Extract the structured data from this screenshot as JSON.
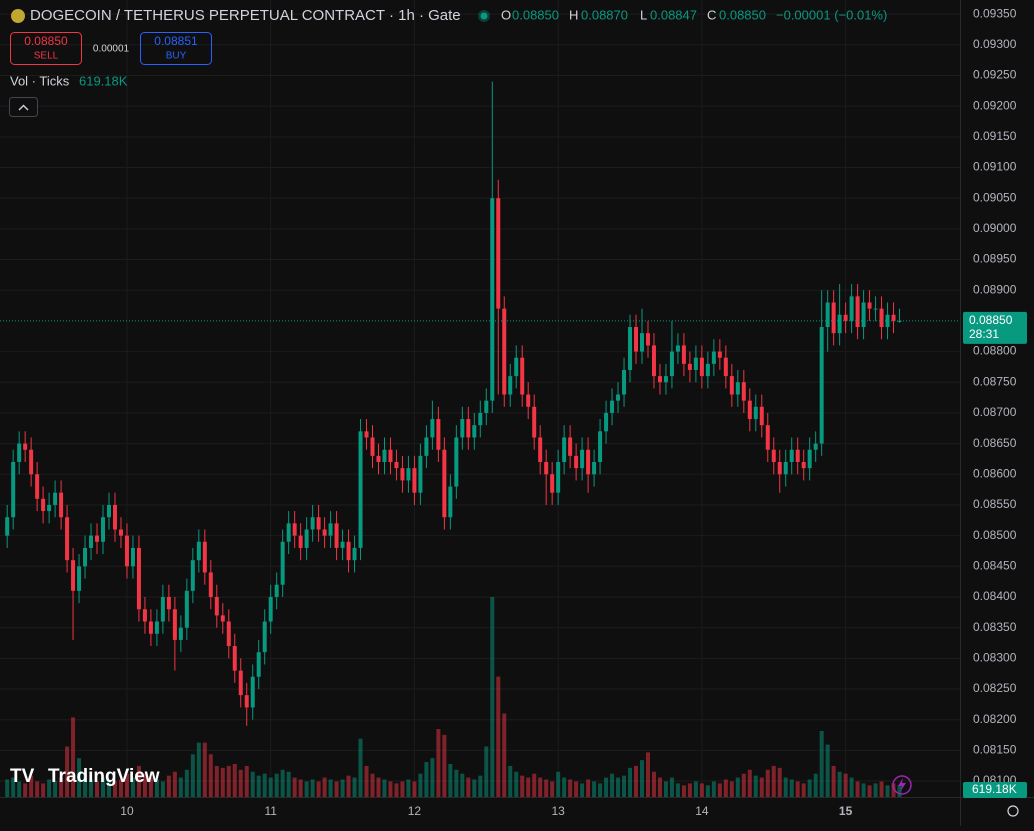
{
  "chart_data": {
    "type": "candlestick",
    "title": "DOGECOIN / TETHERUS PERPETUAL CONTRACT · 1h · Gate",
    "legend": {
      "o_label": "O",
      "o": "0.08850",
      "h_label": "H",
      "h": "0.08870",
      "l_label": "L",
      "l": "0.08847",
      "c_label": "C",
      "c": "0.08850",
      "change": "−0.00001 (−0.01%)"
    },
    "trade": {
      "sell_price": "0.08850",
      "sell": "SELL",
      "spread": "0.00001",
      "buy_price": "0.08851",
      "buy": "BUY"
    },
    "volume_title": "Vol · Ticks",
    "volume_last_label": "619.18K",
    "price_tag": "0.08850",
    "countdown": "28:31",
    "branding": "TradingView",
    "up_color": "#089981",
    "down_color": "#f23645",
    "grid": true,
    "xlim": [
      -1.2,
      159.1
    ],
    "ylim": [
      0.08074,
      0.09373
    ],
    "xticks": [
      {
        "value": 20,
        "label": "10"
      },
      {
        "value": 44,
        "label": "11"
      },
      {
        "value": 68,
        "label": "12"
      },
      {
        "value": 92,
        "label": "13"
      },
      {
        "value": 116,
        "label": "14"
      },
      {
        "value": 140,
        "label": "15"
      }
    ],
    "yticks": [
      {
        "value": 0.0935,
        "label": "0.09350"
      },
      {
        "value": 0.093,
        "label": "0.09300"
      },
      {
        "value": 0.0925,
        "label": "0.09250"
      },
      {
        "value": 0.092,
        "label": "0.09200"
      },
      {
        "value": 0.0915,
        "label": "0.09150"
      },
      {
        "value": 0.091,
        "label": "0.09100"
      },
      {
        "value": 0.0905,
        "label": "0.09050"
      },
      {
        "value": 0.09,
        "label": "0.09000"
      },
      {
        "value": 0.0895,
        "label": "0.08950"
      },
      {
        "value": 0.089,
        "label": "0.08900"
      },
      {
        "value": 0.088,
        "label": "0.08800"
      },
      {
        "value": 0.0875,
        "label": "0.08750"
      },
      {
        "value": 0.087,
        "label": "0.08700"
      },
      {
        "value": 0.0865,
        "label": "0.08650"
      },
      {
        "value": 0.086,
        "label": "0.08600"
      },
      {
        "value": 0.0855,
        "label": "0.08550"
      },
      {
        "value": 0.085,
        "label": "0.08500"
      },
      {
        "value": 0.0845,
        "label": "0.08450"
      },
      {
        "value": 0.084,
        "label": "0.08400"
      },
      {
        "value": 0.0835,
        "label": "0.08350"
      },
      {
        "value": 0.083,
        "label": "0.08300"
      },
      {
        "value": 0.0825,
        "label": "0.08250"
      },
      {
        "value": 0.082,
        "label": "0.08200"
      },
      {
        "value": 0.0815,
        "label": "0.08150"
      },
      {
        "value": 0.081,
        "label": "0.08100"
      }
    ],
    "last_price": 0.0885,
    "open": [
      0.085,
      0.0853,
      0.0862,
      0.0865,
      0.0864,
      0.086,
      0.0856,
      0.0854,
      0.0855,
      0.0857,
      0.0853,
      0.0846,
      0.0841,
      0.0845,
      0.0848,
      0.085,
      0.0849,
      0.0853,
      0.0855,
      0.0851,
      0.085,
      0.0845,
      0.0848,
      0.0838,
      0.0836,
      0.0834,
      0.0836,
      0.084,
      0.0838,
      0.0833,
      0.0835,
      0.0841,
      0.0846,
      0.0849,
      0.0844,
      0.084,
      0.0837,
      0.0836,
      0.0832,
      0.0828,
      0.0824,
      0.0822,
      0.0827,
      0.0831,
      0.0836,
      0.084,
      0.0842,
      0.0849,
      0.0852,
      0.085,
      0.0848,
      0.0851,
      0.0853,
      0.0851,
      0.085,
      0.0852,
      0.0848,
      0.0849,
      0.0846,
      0.0848,
      0.0867,
      0.0866,
      0.0863,
      0.0862,
      0.0864,
      0.0862,
      0.0861,
      0.0859,
      0.0861,
      0.0857,
      0.0863,
      0.0866,
      0.0869,
      0.0864,
      0.0853,
      0.0858,
      0.0866,
      0.0869,
      0.0866,
      0.0868,
      0.087,
      0.0872,
      0.0905,
      0.0887,
      0.0873,
      0.0876,
      0.0879,
      0.0873,
      0.0871,
      0.0866,
      0.0862,
      0.086,
      0.0857,
      0.0862,
      0.0866,
      0.0863,
      0.0861,
      0.0864,
      0.086,
      0.0862,
      0.0867,
      0.087,
      0.0872,
      0.0873,
      0.0877,
      0.0884,
      0.088,
      0.0883,
      0.0881,
      0.0876,
      0.0875,
      0.0876,
      0.088,
      0.0881,
      0.0878,
      0.0877,
      0.0879,
      0.0876,
      0.0878,
      0.088,
      0.0879,
      0.0876,
      0.0873,
      0.0875,
      0.0872,
      0.0869,
      0.0871,
      0.0868,
      0.0864,
      0.0862,
      0.086,
      0.0862,
      0.0864,
      0.0862,
      0.0861,
      0.0864,
      0.0865,
      0.0884,
      0.0888,
      0.0883,
      0.0886,
      0.0885,
      0.0889,
      0.0884,
      0.0888,
      0.0887,
      0.0887,
      0.0884,
      0.0886,
      0.0885
    ],
    "high": [
      0.0855,
      0.0864,
      0.0867,
      0.0867,
      0.0866,
      0.0862,
      0.0858,
      0.0857,
      0.0859,
      0.0859,
      0.0855,
      0.0848,
      0.0847,
      0.085,
      0.0852,
      0.0852,
      0.0855,
      0.0857,
      0.0857,
      0.0853,
      0.0852,
      0.085,
      0.085,
      0.084,
      0.0838,
      0.0838,
      0.0842,
      0.0842,
      0.084,
      0.0837,
      0.0843,
      0.0848,
      0.0851,
      0.0851,
      0.0846,
      0.0842,
      0.0839,
      0.0838,
      0.0834,
      0.083,
      0.0826,
      0.0829,
      0.0833,
      0.0838,
      0.0842,
      0.0844,
      0.0851,
      0.0854,
      0.0854,
      0.0852,
      0.0853,
      0.0855,
      0.0855,
      0.0853,
      0.0854,
      0.0854,
      0.0851,
      0.0851,
      0.085,
      0.0869,
      0.0869,
      0.0868,
      0.0865,
      0.0866,
      0.0866,
      0.0864,
      0.0863,
      0.0863,
      0.0863,
      0.0865,
      0.0868,
      0.0872,
      0.0871,
      0.0866,
      0.086,
      0.0868,
      0.0871,
      0.0871,
      0.087,
      0.0872,
      0.0874,
      0.0924,
      0.0908,
      0.0889,
      0.0878,
      0.0881,
      0.0881,
      0.0875,
      0.0873,
      0.0868,
      0.0864,
      0.0862,
      0.0864,
      0.0868,
      0.0868,
      0.0865,
      0.0866,
      0.0866,
      0.0864,
      0.0869,
      0.0872,
      0.0874,
      0.0875,
      0.0879,
      0.0886,
      0.0886,
      0.0887,
      0.0885,
      0.0883,
      0.0878,
      0.0878,
      0.0885,
      0.0883,
      0.0883,
      0.088,
      0.0881,
      0.0881,
      0.088,
      0.0882,
      0.0882,
      0.0881,
      0.0878,
      0.0877,
      0.0877,
      0.0874,
      0.0873,
      0.0873,
      0.087,
      0.0866,
      0.0864,
      0.0864,
      0.0866,
      0.0866,
      0.0864,
      0.0866,
      0.0867,
      0.089,
      0.089,
      0.089,
      0.0891,
      0.0888,
      0.0891,
      0.0891,
      0.089,
      0.089,
      0.0889,
      0.0889,
      0.0888,
      0.0888,
      0.0887
    ],
    "low": [
      0.0848,
      0.0851,
      0.086,
      0.0862,
      0.0858,
      0.0854,
      0.0852,
      0.0852,
      0.0853,
      0.0851,
      0.0844,
      0.0833,
      0.0839,
      0.0843,
      0.0846,
      0.0847,
      0.0847,
      0.0851,
      0.0849,
      0.0848,
      0.0843,
      0.0843,
      0.0836,
      0.0834,
      0.0832,
      0.0832,
      0.0834,
      0.0836,
      0.0828,
      0.0831,
      0.0833,
      0.0839,
      0.0844,
      0.0842,
      0.0838,
      0.0835,
      0.0834,
      0.083,
      0.0826,
      0.0822,
      0.0819,
      0.082,
      0.0825,
      0.0829,
      0.0834,
      0.0838,
      0.084,
      0.0847,
      0.0848,
      0.0846,
      0.0846,
      0.0849,
      0.0849,
      0.0848,
      0.0848,
      0.0846,
      0.0846,
      0.0844,
      0.0844,
      0.0846,
      0.0864,
      0.0861,
      0.086,
      0.086,
      0.086,
      0.0859,
      0.0857,
      0.0857,
      0.0855,
      0.0855,
      0.0861,
      0.0864,
      0.0862,
      0.0851,
      0.0851,
      0.0856,
      0.0864,
      0.0864,
      0.0864,
      0.0866,
      0.0868,
      0.087,
      0.0873,
      0.0871,
      0.0871,
      0.0874,
      0.0871,
      0.0869,
      0.0864,
      0.086,
      0.0855,
      0.0855,
      0.0855,
      0.086,
      0.0861,
      0.0859,
      0.0859,
      0.0857,
      0.0858,
      0.086,
      0.0865,
      0.0868,
      0.087,
      0.0871,
      0.0875,
      0.0878,
      0.0878,
      0.0879,
      0.0874,
      0.0873,
      0.0873,
      0.0874,
      0.0878,
      0.0876,
      0.0875,
      0.0875,
      0.0874,
      0.0874,
      0.0876,
      0.0877,
      0.0874,
      0.0871,
      0.0871,
      0.087,
      0.0867,
      0.0867,
      0.0866,
      0.0862,
      0.086,
      0.0857,
      0.0858,
      0.086,
      0.086,
      0.0859,
      0.0859,
      0.0862,
      0.0863,
      0.088,
      0.0881,
      0.0881,
      0.0883,
      0.0883,
      0.0882,
      0.0882,
      0.0885,
      0.0885,
      0.0882,
      0.0882,
      0.0883,
      0.08847
    ],
    "close": [
      0.0853,
      0.0862,
      0.0865,
      0.0864,
      0.086,
      0.0856,
      0.0854,
      0.0855,
      0.0857,
      0.0853,
      0.0846,
      0.0841,
      0.0845,
      0.0848,
      0.085,
      0.0849,
      0.0853,
      0.0855,
      0.0851,
      0.085,
      0.0845,
      0.0848,
      0.0838,
      0.0836,
      0.0834,
      0.0836,
      0.084,
      0.0838,
      0.0833,
      0.0835,
      0.0841,
      0.0846,
      0.0849,
      0.0844,
      0.084,
      0.0837,
      0.0836,
      0.0832,
      0.0828,
      0.0824,
      0.0822,
      0.0827,
      0.0831,
      0.0836,
      0.084,
      0.0842,
      0.0849,
      0.0852,
      0.085,
      0.0848,
      0.0851,
      0.0853,
      0.0851,
      0.085,
      0.0852,
      0.0848,
      0.0849,
      0.0846,
      0.0848,
      0.0867,
      0.0866,
      0.0863,
      0.0862,
      0.0864,
      0.0862,
      0.0861,
      0.0859,
      0.0861,
      0.0857,
      0.0863,
      0.0866,
      0.0869,
      0.0864,
      0.0853,
      0.0858,
      0.0866,
      0.0869,
      0.0866,
      0.0868,
      0.087,
      0.0872,
      0.0905,
      0.0887,
      0.0873,
      0.0876,
      0.0879,
      0.0873,
      0.0871,
      0.0866,
      0.0862,
      0.086,
      0.0857,
      0.0862,
      0.0866,
      0.0863,
      0.0861,
      0.0864,
      0.086,
      0.0862,
      0.0867,
      0.087,
      0.0872,
      0.0873,
      0.0877,
      0.0884,
      0.088,
      0.0883,
      0.0881,
      0.0876,
      0.0875,
      0.0876,
      0.088,
      0.0881,
      0.0878,
      0.0877,
      0.0879,
      0.0876,
      0.0878,
      0.088,
      0.0879,
      0.0876,
      0.0873,
      0.0875,
      0.0872,
      0.0869,
      0.0871,
      0.0868,
      0.0864,
      0.0862,
      0.086,
      0.0862,
      0.0864,
      0.0862,
      0.0861,
      0.0864,
      0.0865,
      0.0884,
      0.0888,
      0.0883,
      0.0886,
      0.0885,
      0.0889,
      0.0884,
      0.0888,
      0.0887,
      0.0887,
      0.0884,
      0.0886,
      0.0885,
      0.0885
    ],
    "volume": [
      900000,
      1000000,
      800000,
      700000,
      1100000,
      800000,
      700000,
      900000,
      800000,
      1000000,
      2600000,
      4100000,
      2000000,
      1200000,
      900000,
      800000,
      1000000,
      900000,
      800000,
      900000,
      1200000,
      1000000,
      1600000,
      1200000,
      1000000,
      900000,
      800000,
      1100000,
      1300000,
      1000000,
      1400000,
      2200000,
      2800000,
      2800000,
      2200000,
      1600000,
      1500000,
      1600000,
      1700000,
      1400000,
      1600000,
      1300000,
      1100000,
      1200000,
      1000000,
      1200000,
      1400000,
      1300000,
      1000000,
      900000,
      800000,
      900000,
      800000,
      1000000,
      900000,
      800000,
      900000,
      1100000,
      1000000,
      3000000,
      1600000,
      1200000,
      1000000,
      900000,
      800000,
      700000,
      800000,
      900000,
      800000,
      1200000,
      1800000,
      2000000,
      3500000,
      3200000,
      1700000,
      1400000,
      1200000,
      1000000,
      900000,
      1100000,
      2600000,
      10300000,
      6200000,
      4300000,
      1600000,
      1300000,
      1100000,
      1000000,
      1200000,
      1000000,
      900000,
      800000,
      1300000,
      1000000,
      900000,
      800000,
      700000,
      900000,
      800000,
      700000,
      1000000,
      1200000,
      1000000,
      1100000,
      1500000,
      1600000,
      1900000,
      2300000,
      1300000,
      1000000,
      800000,
      1000000,
      700000,
      600000,
      700000,
      800000,
      700000,
      600000,
      800000,
      700000,
      900000,
      800000,
      1000000,
      1200000,
      1400000,
      1100000,
      1000000,
      1400000,
      1600000,
      1500000,
      1000000,
      900000,
      800000,
      700000,
      900000,
      1200000,
      3400000,
      2700000,
      1600000,
      1300000,
      1200000,
      1000000,
      800000,
      700000,
      600000,
      700000,
      800000,
      600000,
      700000,
      619180
    ]
  }
}
